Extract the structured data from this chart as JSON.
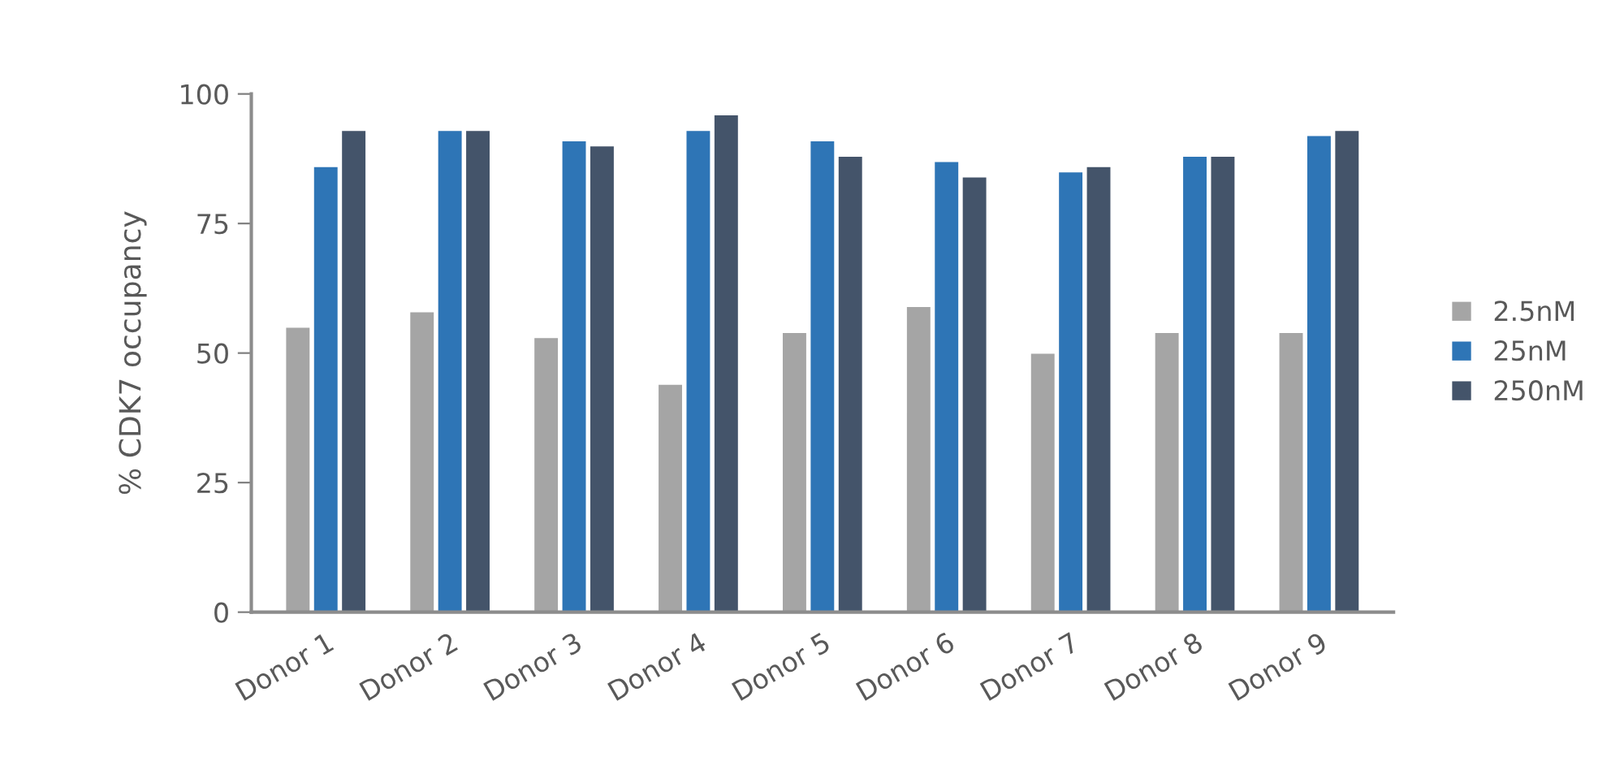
{
  "chart_data": {
    "type": "bar",
    "ylabel": "% CDK7 occupancy",
    "categories": [
      "Donor 1",
      "Donor 2",
      "Donor 3",
      "Donor 4",
      "Donor 5",
      "Donor 6",
      "Donor 7",
      "Donor 8",
      "Donor 9"
    ],
    "series": [
      {
        "name": "2.5nM",
        "color": "#a5a5a5",
        "values": [
          55,
          58,
          53,
          44,
          54,
          59,
          50,
          54,
          54
        ]
      },
      {
        "name": "25nM",
        "color": "#2e75b6",
        "values": [
          86,
          93,
          91,
          93,
          91,
          87,
          85,
          88,
          92
        ]
      },
      {
        "name": "250nM",
        "color": "#44546a",
        "values": [
          93,
          93,
          90,
          96,
          88,
          84,
          86,
          88,
          93
        ]
      }
    ],
    "ylim": [
      0,
      100
    ],
    "yticks": [
      0,
      25,
      50,
      75,
      100
    ],
    "grid": false,
    "legend": "right"
  }
}
